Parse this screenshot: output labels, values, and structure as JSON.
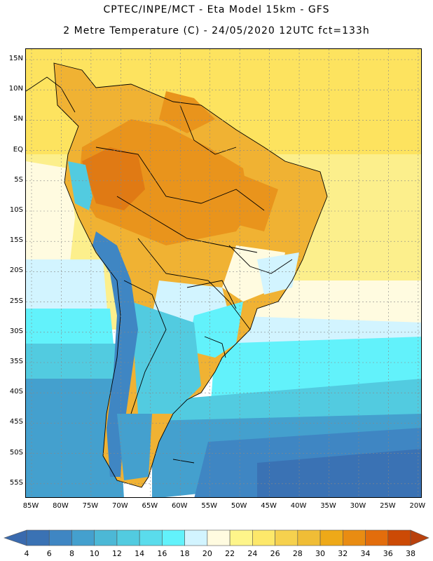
{
  "title_line1": "CPTEC/INPE/MCT -  Eta Model 15km - GFS",
  "title_line2": "2 Metre Temperature (C) - 24/05/2020 12UTC fct=133h",
  "lat_labels": [
    "15N",
    "10N",
    "5N",
    "EQ",
    "5S",
    "10S",
    "15S",
    "20S",
    "25S",
    "30S",
    "35S",
    "40S",
    "45S",
    "50S",
    "55S"
  ],
  "lon_labels": [
    "85W",
    "80W",
    "75W",
    "70W",
    "65W",
    "60W",
    "55W",
    "50W",
    "45W",
    "40W",
    "35W",
    "30W",
    "25W",
    "20W"
  ],
  "colorbar": {
    "labels": [
      "4",
      "6",
      "8",
      "10",
      "12",
      "14",
      "16",
      "18",
      "20",
      "22",
      "24",
      "26",
      "28",
      "30",
      "32",
      "34",
      "36",
      "38"
    ],
    "colors": [
      "#3a72b4",
      "#3f86c3",
      "#44a0ce",
      "#4cb8d6",
      "#52cbe0",
      "#5adcec",
      "#62f2fb",
      "#d2f4ff",
      "#fffbe0",
      "#fef58a",
      "#fde86a",
      "#f6d14e",
      "#f0bd36",
      "#eea918",
      "#e98c12",
      "#e36d0c",
      "#cc4a05"
    ],
    "lower_color": "#3a6aae",
    "upper_color": "#b9410d"
  },
  "map_colors": {
    "ocean_warm": "#fde35f",
    "ocean_warm2": "#fcef8c",
    "ocean_mid": "#fffbe0",
    "ocean_cool1": "#d2f4ff",
    "ocean_cool2": "#62f2fb",
    "ocean_cool3": "#52cbe0",
    "ocean_cold1": "#44a0ce",
    "ocean_cold2": "#3f86c3",
    "ocean_cold3": "#3a72b4",
    "land_hot": "#e9941c",
    "land_hotter": "#e07a14",
    "land_warm": "#f0b233",
    "andes_cool": "#52cbe0",
    "andes_cold": "#3f86c3",
    "south_cone": "#62f2fb",
    "gridline": "#888888",
    "border": "#000000"
  }
}
